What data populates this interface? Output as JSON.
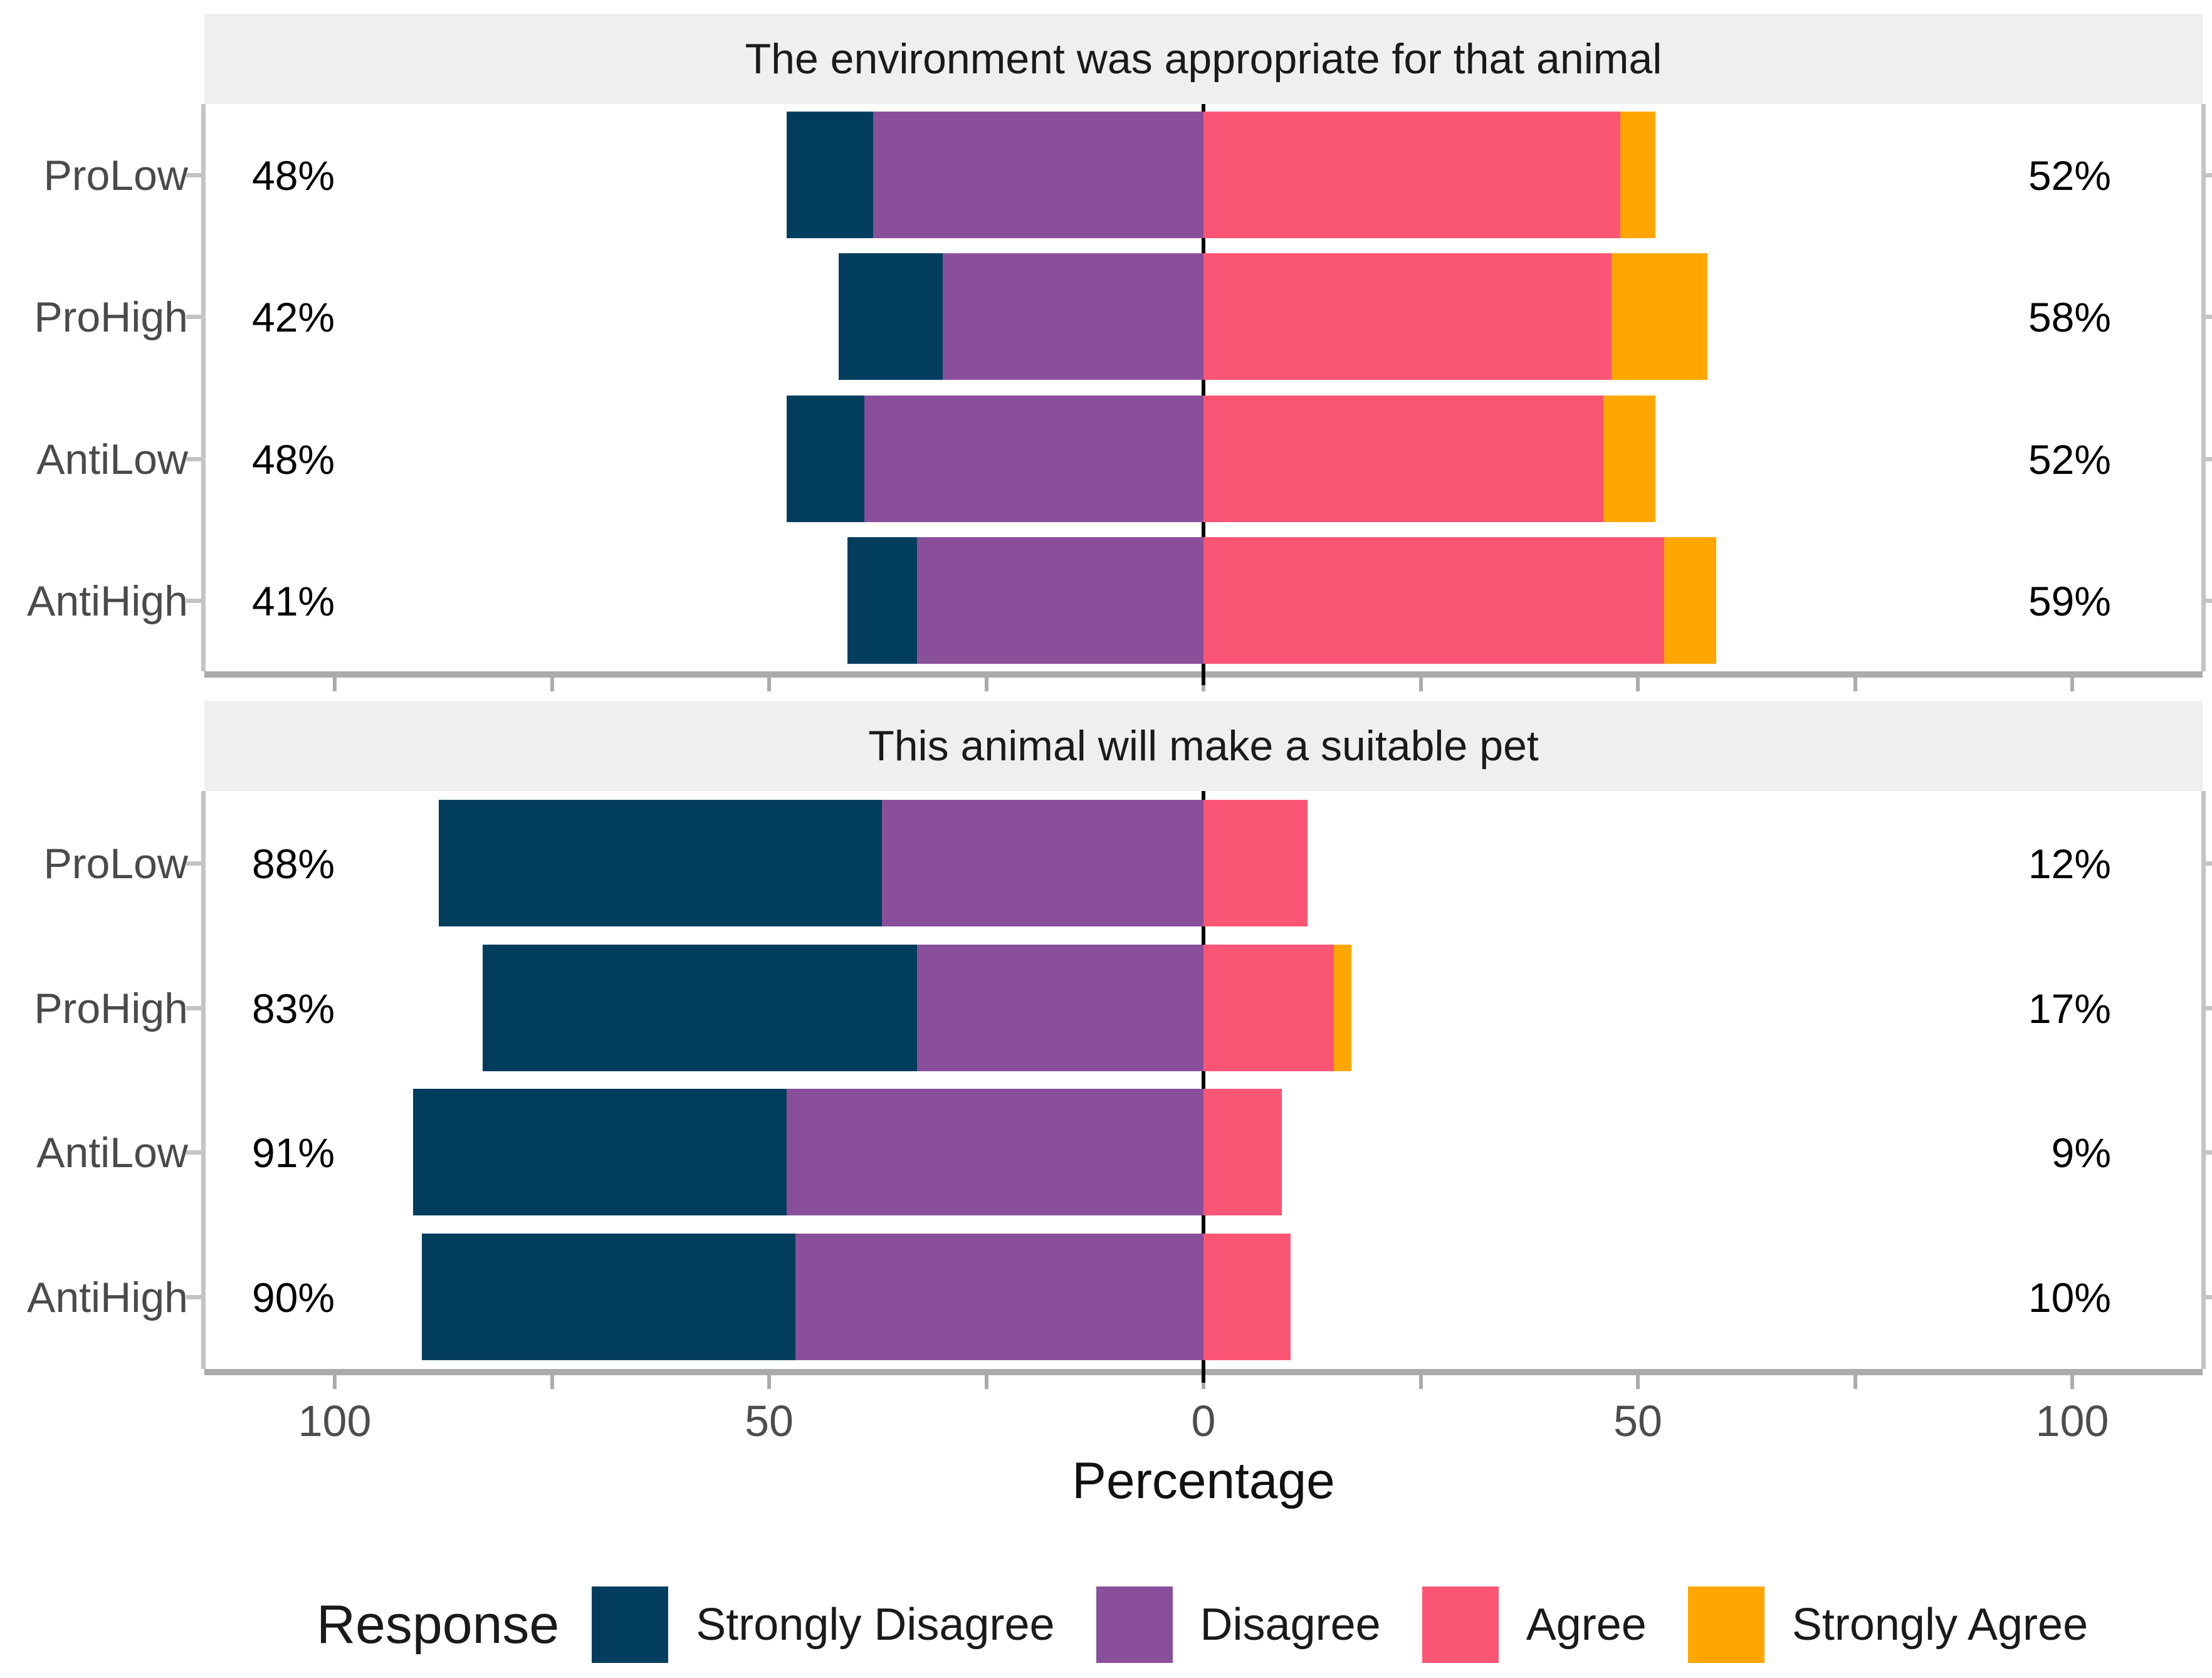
{
  "legend": {
    "title": "Response"
  },
  "chart_data": {
    "type": "bar",
    "subtype": "diverging_stacked_likert",
    "orientation": "horizontal",
    "legend_position": "bottom",
    "grid": false,
    "responses": [
      {
        "name": "Strongly Disagree",
        "color": "#013E5E"
      },
      {
        "name": "Disagree",
        "color": "#8A4F9B"
      },
      {
        "name": "Agree",
        "color": "#FB5575"
      },
      {
        "name": "Strongly Agree",
        "color": "#FFA600"
      }
    ],
    "x_axis": {
      "title": "Percentage",
      "tick_values": [
        -100,
        -50,
        0,
        50,
        100
      ],
      "tick_labels": [
        "100",
        "50",
        "0",
        "50",
        "100"
      ],
      "minor_tick_step": 25,
      "range": [
        -115,
        115
      ]
    },
    "panels": [
      {
        "title": "The environment was appropriate for that animal",
        "categories": [
          "ProLow",
          "ProHigh",
          "AntiLow",
          "AntiHigh"
        ],
        "rows": [
          {
            "group": "ProLow",
            "disagree_total": "48%",
            "agree_total": "52%",
            "values": [
              10,
              38,
              48,
              4
            ]
          },
          {
            "group": "ProHigh",
            "disagree_total": "42%",
            "agree_total": "58%",
            "values": [
              12,
              30,
              47,
              11
            ]
          },
          {
            "group": "AntiLow",
            "disagree_total": "48%",
            "agree_total": "52%",
            "values": [
              9,
              39,
              46,
              6
            ]
          },
          {
            "group": "AntiHigh",
            "disagree_total": "41%",
            "agree_total": "59%",
            "values": [
              8,
              33,
              53,
              6
            ]
          }
        ]
      },
      {
        "title": "This animal will make a suitable pet",
        "categories": [
          "ProLow",
          "ProHigh",
          "AntiLow",
          "AntiHigh"
        ],
        "rows": [
          {
            "group": "ProLow",
            "disagree_total": "88%",
            "agree_total": "12%",
            "values": [
              51,
              37,
              12,
              0
            ]
          },
          {
            "group": "ProHigh",
            "disagree_total": "83%",
            "agree_total": "17%",
            "values": [
              50,
              33,
              15,
              2
            ]
          },
          {
            "group": "AntiLow",
            "disagree_total": "91%",
            "agree_total": "9%",
            "values": [
              43,
              48,
              9,
              0
            ]
          },
          {
            "group": "AntiHigh",
            "disagree_total": "90%",
            "agree_total": "10%",
            "values": [
              43,
              47,
              10,
              0
            ]
          }
        ]
      }
    ],
    "colors": {
      "strip_background": "#EFEFEF",
      "axis_line": "#ABABAB",
      "panel_border": "#C4C4C4",
      "zero_line": "#000000",
      "tick_text": "#4D4D4D",
      "annotation_text": "#000000"
    }
  }
}
